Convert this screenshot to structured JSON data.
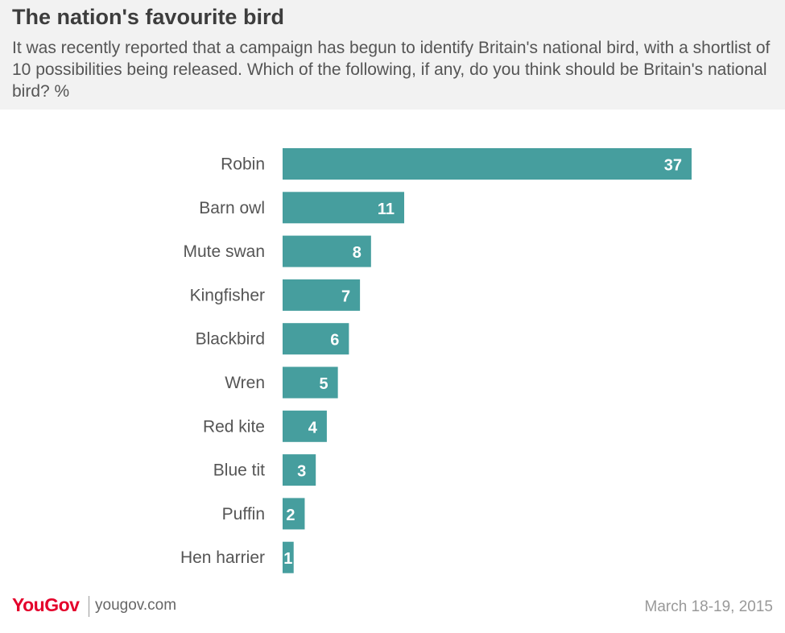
{
  "header": {
    "title": "The nation's favourite bird",
    "subtitle": "It was recently reported that a campaign has begun to identify Britain's national bird, with a shortlist of 10 possibilities being released. Which of the following, if any, do you think should be Britain's national bird? %"
  },
  "chart_data": {
    "type": "bar",
    "orientation": "horizontal",
    "categories": [
      "Robin",
      "Barn owl",
      "Mute swan",
      "Kingfisher",
      "Blackbird",
      "Wren",
      "Red kite",
      "Blue tit",
      "Puffin",
      "Hen harrier"
    ],
    "values": [
      37,
      11,
      8,
      7,
      6,
      5,
      4,
      3,
      2,
      1
    ],
    "title": "The nation's favourite bird",
    "xlabel": "",
    "ylabel": "",
    "xlim": [
      0,
      37
    ],
    "grid": false,
    "bar_color": "#469e9e",
    "value_label_color": "#ffffff"
  },
  "footer": {
    "logo": "YouGov",
    "url": "yougov.com",
    "date": "March 18-19, 2015"
  }
}
